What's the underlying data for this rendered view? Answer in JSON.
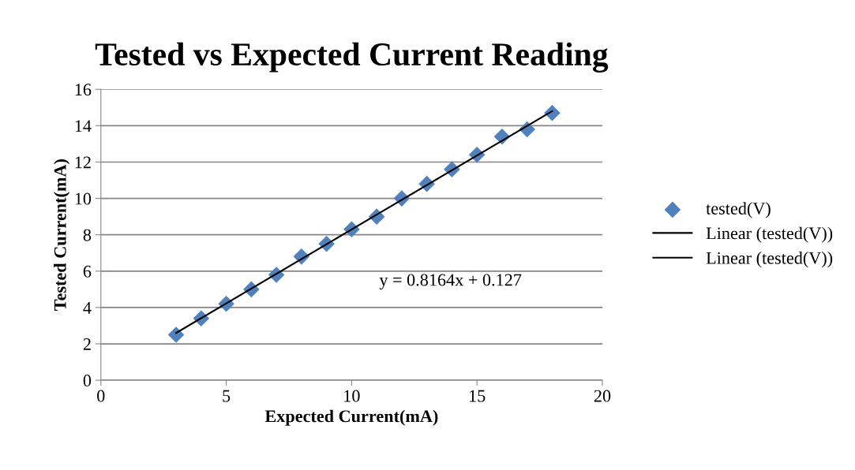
{
  "chart_data": {
    "type": "scatter",
    "title": "Tested vs Expected Current Reading",
    "xlabel": "Expected Current(mA)",
    "ylabel": "Tested Current(mA)",
    "x": [
      3,
      4,
      5,
      6,
      7,
      8,
      9,
      10,
      11,
      12,
      13,
      14,
      15,
      16,
      17,
      18
    ],
    "series": [
      {
        "name": "tested(V)",
        "color": "#4f81bd",
        "marker": "diamond",
        "values": [
          2.5,
          3.4,
          4.2,
          5.0,
          5.8,
          6.8,
          7.5,
          8.3,
          9.0,
          10.0,
          10.8,
          11.6,
          12.4,
          13.4,
          13.8,
          14.7
        ]
      },
      {
        "name": "Linear (tested(V))",
        "type": "line",
        "color": "#000000",
        "x": [
          3,
          18
        ],
        "values": [
          2.6,
          14.8
        ]
      },
      {
        "name": "Linear (tested(V))",
        "type": "line",
        "color": "#000000",
        "values": [
          null,
          null,
          null,
          null,
          null,
          null,
          null,
          null,
          null,
          null,
          null,
          null,
          null,
          null,
          null,
          null
        ]
      }
    ],
    "annotations": [
      "y = 0.8164x + 0.127"
    ],
    "xlim": [
      0,
      20
    ],
    "xticks": [
      0,
      5,
      10,
      15,
      20
    ],
    "ylim": [
      0,
      16
    ],
    "yticks": [
      0,
      2,
      4,
      6,
      8,
      10,
      12,
      14,
      16
    ],
    "grid": "y",
    "legend": "right"
  }
}
